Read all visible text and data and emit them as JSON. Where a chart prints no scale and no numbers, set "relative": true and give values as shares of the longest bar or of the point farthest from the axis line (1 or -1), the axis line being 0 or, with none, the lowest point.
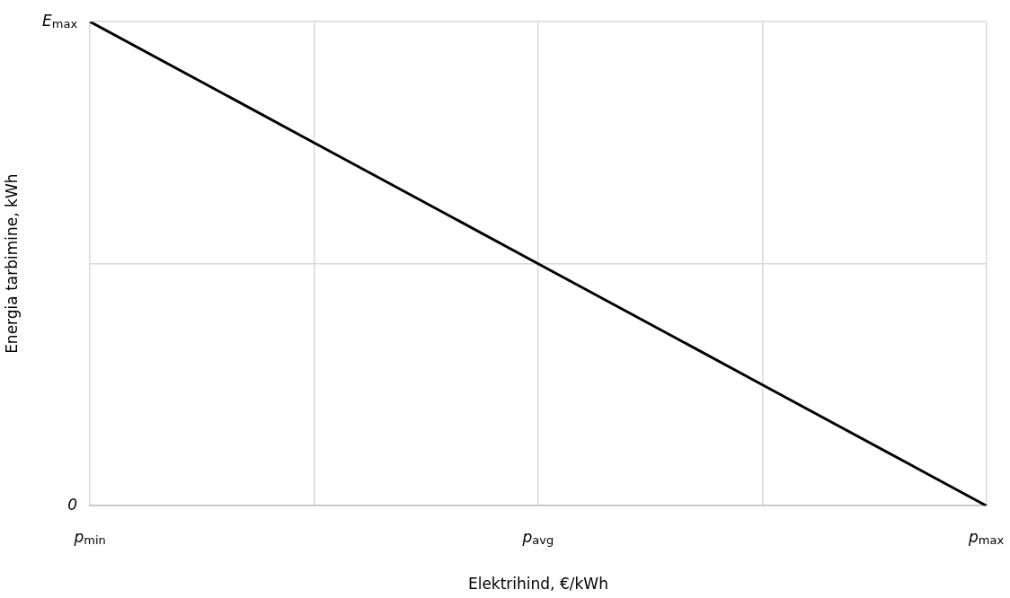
{
  "chart_data": {
    "type": "line",
    "relative": true,
    "xlabel": "Elektrihind, €/kWh",
    "ylabel": "Energia tarbimine, kWh",
    "categories": [
      "p$_{min}$",
      null,
      "p$_{avg}$",
      null,
      "p$_{max}$"
    ],
    "series": [
      {
        "color": "#000000",
        "values": [
          1,
          0.75,
          0.5,
          0.25,
          0
        ]
      }
    ],
    "annotations": [
      "E$_{max}$",
      "0"
    ],
    "grid": true,
    "legend": false,
    "marker": "none",
    "line_style": "solid"
  }
}
